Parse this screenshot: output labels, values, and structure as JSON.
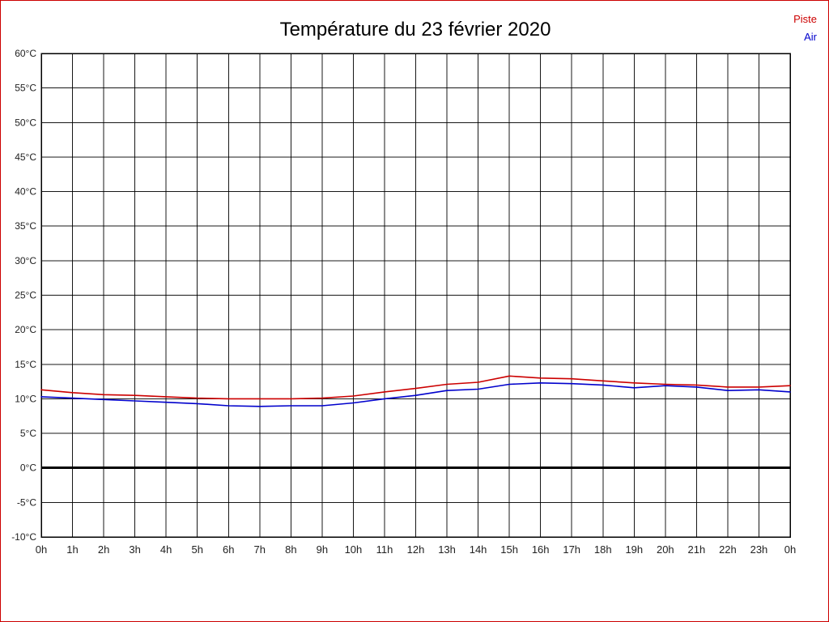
{
  "frame": {
    "border_color": "#cc0000",
    "background": "#ffffff"
  },
  "title": "Température du 23 février 2020",
  "chart_data": {
    "type": "line",
    "title": "Température du 23 février 2020",
    "xlabel": "",
    "ylabel": "",
    "xlim": [
      0,
      24
    ],
    "ylim": [
      -10,
      60
    ],
    "grid": true,
    "grid_color": "#000000",
    "axis_label_color": "#222222",
    "zero_line": {
      "value": 0,
      "color": "#000000",
      "width": 3
    },
    "x": [
      0,
      1,
      2,
      3,
      4,
      5,
      6,
      7,
      8,
      9,
      10,
      11,
      12,
      13,
      14,
      15,
      16,
      17,
      18,
      19,
      20,
      21,
      22,
      23,
      24
    ],
    "x_tick_labels": [
      "0h",
      "1h",
      "2h",
      "3h",
      "4h",
      "5h",
      "6h",
      "7h",
      "8h",
      "9h",
      "10h",
      "11h",
      "12h",
      "13h",
      "14h",
      "15h",
      "16h",
      "17h",
      "18h",
      "19h",
      "20h",
      "21h",
      "22h",
      "23h",
      "0h"
    ],
    "y_ticks": [
      60,
      55,
      50,
      45,
      40,
      35,
      30,
      25,
      20,
      15,
      10,
      5,
      0,
      -5,
      -10
    ],
    "y_tick_labels": [
      "60°C",
      "55°C",
      "50°C",
      "45°C",
      "40°C",
      "35°C",
      "30°C",
      "25°C",
      "20°C",
      "15°C",
      "10°C",
      "5°C",
      "0°C",
      "-5°C",
      "-10°C"
    ],
    "legend_position": "top-right",
    "series": [
      {
        "name": "Piste",
        "color": "#cc0000",
        "values": [
          11.3,
          10.9,
          10.6,
          10.5,
          10.3,
          10.1,
          10.0,
          10.0,
          10.0,
          10.1,
          10.4,
          11.0,
          11.5,
          12.1,
          12.4,
          13.3,
          13.0,
          12.9,
          12.6,
          12.3,
          12.1,
          12.0,
          11.7,
          11.7,
          11.9
        ]
      },
      {
        "name": "Air",
        "color": "#0000cc",
        "values": [
          10.3,
          10.1,
          9.9,
          9.7,
          9.5,
          9.3,
          9.0,
          8.9,
          9.0,
          9.0,
          9.4,
          10.0,
          10.5,
          11.2,
          11.4,
          12.1,
          12.3,
          12.2,
          12.0,
          11.6,
          11.9,
          11.7,
          11.2,
          11.3,
          11.0
        ]
      }
    ]
  }
}
